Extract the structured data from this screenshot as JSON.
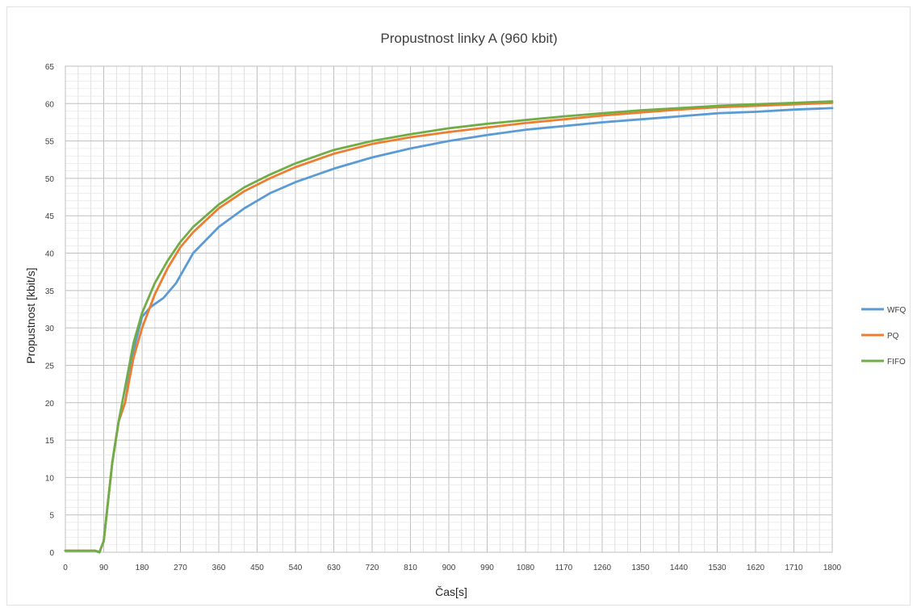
{
  "chart_data": {
    "type": "line",
    "title": "Propustnost linky A (960 kbit)",
    "xlabel": "Čas[s]",
    "ylabel": "Propustnost [kbit/s]",
    "xlim": [
      0,
      1800
    ],
    "ylim": [
      0,
      65
    ],
    "x_ticks": [
      0,
      90,
      180,
      270,
      360,
      450,
      540,
      630,
      720,
      810,
      900,
      990,
      1080,
      1170,
      1260,
      1350,
      1440,
      1530,
      1620,
      1710,
      1800
    ],
    "y_ticks": [
      0,
      5,
      10,
      15,
      20,
      25,
      30,
      35,
      40,
      45,
      50,
      55,
      60,
      65
    ],
    "grid": true,
    "legend_position": "right",
    "series": [
      {
        "name": "WFQ",
        "color": "#5b9bd5",
        "points": [
          [
            0,
            0.2
          ],
          [
            70,
            0.2
          ],
          [
            80,
            0
          ],
          [
            90,
            1.5
          ],
          [
            110,
            12
          ],
          [
            125,
            17.5
          ],
          [
            140,
            20
          ],
          [
            160,
            27
          ],
          [
            180,
            31.5
          ],
          [
            200,
            32.8
          ],
          [
            230,
            34
          ],
          [
            260,
            36
          ],
          [
            300,
            40
          ],
          [
            360,
            43.5
          ],
          [
            420,
            46
          ],
          [
            480,
            48
          ],
          [
            540,
            49.5
          ],
          [
            630,
            51.3
          ],
          [
            720,
            52.8
          ],
          [
            810,
            54
          ],
          [
            900,
            55
          ],
          [
            990,
            55.8
          ],
          [
            1080,
            56.5
          ],
          [
            1170,
            57
          ],
          [
            1260,
            57.5
          ],
          [
            1350,
            57.9
          ],
          [
            1440,
            58.3
          ],
          [
            1530,
            58.7
          ],
          [
            1620,
            58.9
          ],
          [
            1710,
            59.2
          ],
          [
            1800,
            59.4
          ]
        ]
      },
      {
        "name": "PQ",
        "color": "#ed7d31",
        "points": [
          [
            0,
            0.2
          ],
          [
            70,
            0.2
          ],
          [
            80,
            0
          ],
          [
            90,
            1.5
          ],
          [
            110,
            12
          ],
          [
            125,
            17.5
          ],
          [
            140,
            20
          ],
          [
            160,
            26
          ],
          [
            180,
            30
          ],
          [
            210,
            34.5
          ],
          [
            240,
            38
          ],
          [
            270,
            40.8
          ],
          [
            300,
            42.8
          ],
          [
            360,
            46
          ],
          [
            420,
            48.3
          ],
          [
            480,
            50
          ],
          [
            540,
            51.5
          ],
          [
            630,
            53.3
          ],
          [
            720,
            54.6
          ],
          [
            810,
            55.5
          ],
          [
            900,
            56.2
          ],
          [
            990,
            56.8
          ],
          [
            1080,
            57.4
          ],
          [
            1170,
            57.9
          ],
          [
            1260,
            58.4
          ],
          [
            1350,
            58.8
          ],
          [
            1440,
            59.2
          ],
          [
            1530,
            59.5
          ],
          [
            1620,
            59.7
          ],
          [
            1710,
            59.9
          ],
          [
            1800,
            60.1
          ]
        ]
      },
      {
        "name": "FIFO",
        "color": "#70ad47",
        "points": [
          [
            0,
            0.2
          ],
          [
            70,
            0.2
          ],
          [
            80,
            0
          ],
          [
            90,
            1.5
          ],
          [
            110,
            12
          ],
          [
            125,
            17.5
          ],
          [
            140,
            22
          ],
          [
            160,
            28
          ],
          [
            180,
            32
          ],
          [
            210,
            36
          ],
          [
            240,
            39
          ],
          [
            270,
            41.5
          ],
          [
            300,
            43.5
          ],
          [
            360,
            46.5
          ],
          [
            420,
            48.8
          ],
          [
            480,
            50.5
          ],
          [
            540,
            52
          ],
          [
            630,
            53.8
          ],
          [
            720,
            55
          ],
          [
            810,
            55.9
          ],
          [
            900,
            56.7
          ],
          [
            990,
            57.3
          ],
          [
            1080,
            57.8
          ],
          [
            1170,
            58.3
          ],
          [
            1260,
            58.7
          ],
          [
            1350,
            59.1
          ],
          [
            1440,
            59.4
          ],
          [
            1530,
            59.7
          ],
          [
            1620,
            59.9
          ],
          [
            1710,
            60.1
          ],
          [
            1800,
            60.3
          ]
        ]
      }
    ]
  }
}
